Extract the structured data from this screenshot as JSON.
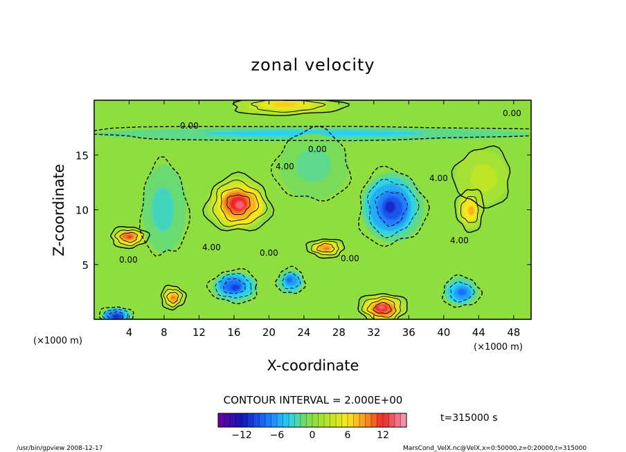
{
  "chart_data": {
    "type": "heatmap",
    "title": "zonal velocity",
    "xlabel": "X-coordinate",
    "ylabel": "Z-coordinate",
    "x_unit_left": "(×1000 m)",
    "x_unit_right": "(×1000 m)",
    "xlim": [
      0,
      50
    ],
    "ylim": [
      0,
      20
    ],
    "x_ticks": [
      4,
      8,
      12,
      16,
      20,
      24,
      28,
      32,
      36,
      40,
      44,
      48
    ],
    "y_ticks": [
      5,
      10,
      15
    ],
    "contour_interval_label": "CONTOUR INTERVAL = 2.000E+00",
    "time_label": "t=315000 s",
    "colorbar": {
      "min": -16,
      "max": 16,
      "ticks": [
        -12,
        -6,
        0,
        6,
        12
      ]
    },
    "contour_labels": [
      "0.00",
      "0.00",
      "0.00",
      "4.00",
      "4.00",
      "4.00",
      "4.00",
      "0.00",
      "0.00",
      "0.00"
    ],
    "features": [
      {
        "x": 16.5,
        "z": 10.5,
        "value": 14,
        "rx": 3.5,
        "rz": 2.4
      },
      {
        "x": 34.0,
        "z": 10.2,
        "value": -11,
        "rx": 3.6,
        "rz": 3.2
      },
      {
        "x": 4.0,
        "z": 7.5,
        "value": 12,
        "rx": 2.0,
        "rz": 0.9
      },
      {
        "x": 33.0,
        "z": 1.0,
        "value": 14,
        "rx": 2.6,
        "rz": 1.3
      },
      {
        "x": 43.0,
        "z": 10.0,
        "value": 8,
        "rx": 1.5,
        "rz": 1.8
      },
      {
        "x": 16.0,
        "z": 3.0,
        "value": -10,
        "rx": 2.6,
        "rz": 1.4
      },
      {
        "x": 22.5,
        "z": 3.5,
        "value": -8,
        "rx": 1.5,
        "rz": 1.1
      },
      {
        "x": 42.0,
        "z": 2.5,
        "value": -8,
        "rx": 2.0,
        "rz": 1.3
      },
      {
        "x": 9.0,
        "z": 2.0,
        "value": 10,
        "rx": 1.3,
        "rz": 1.0
      },
      {
        "x": 2.5,
        "z": 0.3,
        "value": -12,
        "rx": 1.8,
        "rz": 0.8
      },
      {
        "x": 26.5,
        "z": 6.5,
        "value": 10,
        "rx": 2.0,
        "rz": 0.8
      },
      {
        "x": 44.5,
        "z": 13.0,
        "value": 3,
        "rx": 3.0,
        "rz": 2.5
      },
      {
        "x": 25.0,
        "z": 14.0,
        "value": -2,
        "rx": 4.0,
        "rz": 3.0
      },
      {
        "x": 8.0,
        "z": 10.0,
        "value": -3,
        "rx": 2.5,
        "rz": 4.0
      },
      {
        "x": 22.0,
        "z": 19.5,
        "value": 7,
        "rx": 6.0,
        "rz": 0.8
      },
      {
        "x": 25.0,
        "z": 17.0,
        "value": -4,
        "rx": 25.0,
        "rz": 0.6
      }
    ]
  },
  "footer": {
    "left": "/usr/bin/gpview  2008-12-17",
    "right": "MarsCond_VelX.nc@VelX,x=0:50000,z=0:20000,t=315000"
  }
}
